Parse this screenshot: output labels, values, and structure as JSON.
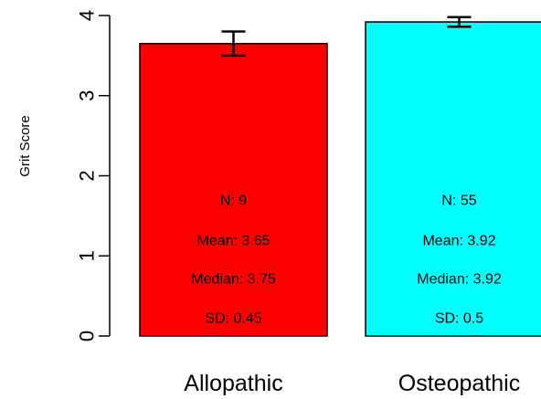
{
  "chart_data": {
    "type": "bar",
    "title": "",
    "xlabel": "",
    "ylabel": "Grit Score",
    "ylim": [
      0,
      4
    ],
    "yticks": [
      0,
      1,
      2,
      3,
      4
    ],
    "grid": false,
    "categories": [
      "Allopathic",
      "Osteopathic"
    ],
    "values": [
      3.65,
      3.92
    ],
    "error_bars": [
      {
        "low": 3.5,
        "high": 3.8
      },
      {
        "low": 3.86,
        "high": 3.98
      }
    ],
    "colors": [
      "#ff0000",
      "#00ffff"
    ],
    "stats": [
      {
        "n": "N:  9",
        "mean": "Mean:  3.65",
        "median": "Median:  3.75",
        "sd": "SD:  0.45"
      },
      {
        "n": "N:  55",
        "mean": "Mean:  3.92",
        "median": "Median:  3.92",
        "sd": "SD:  0.5"
      }
    ]
  }
}
